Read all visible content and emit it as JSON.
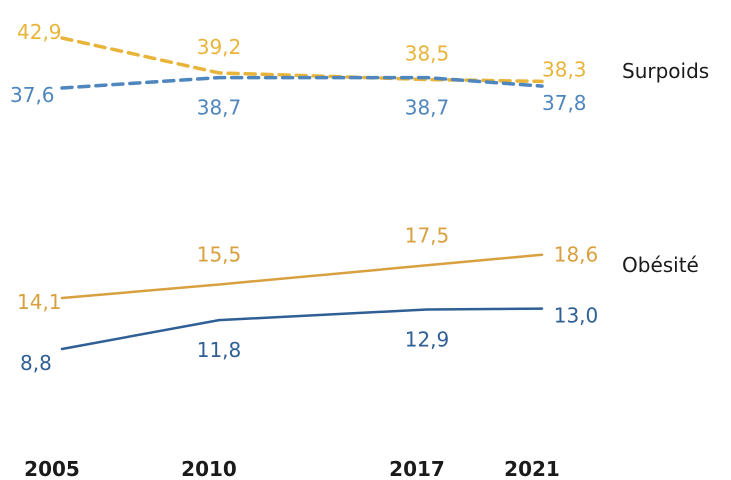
{
  "chart_data": {
    "type": "line",
    "x": [
      2005,
      2010,
      2017,
      2021
    ],
    "xtick_labels": [
      "2005",
      "2010",
      "2017",
      "2021"
    ],
    "groups": [
      {
        "label": "Surpoids",
        "style": "dashed",
        "series": [
          {
            "values": [
              42.9,
              39.2,
              38.5,
              38.3
            ],
            "labels": [
              "42,9",
              "39,2",
              "38,5",
              "38,3"
            ],
            "color": "#e8b43a"
          },
          {
            "values": [
              37.6,
              38.7,
              38.7,
              37.8
            ],
            "labels": [
              "37,6",
              "38,7",
              "38,7",
              "37,8"
            ],
            "color": "#4f86bd"
          }
        ]
      },
      {
        "label": "Obésité",
        "style": "solid",
        "series": [
          {
            "values": [
              14.1,
              15.5,
              17.5,
              18.6
            ],
            "labels": [
              "14,1",
              "15,5",
              "17,5",
              "18,6"
            ],
            "color": "#d9a03f"
          },
          {
            "values": [
              8.8,
              11.8,
              12.9,
              13.0
            ],
            "labels": [
              "8,8",
              "11,8",
              "12,9",
              "13,0"
            ],
            "color": "#2f5f95"
          }
        ]
      }
    ]
  }
}
